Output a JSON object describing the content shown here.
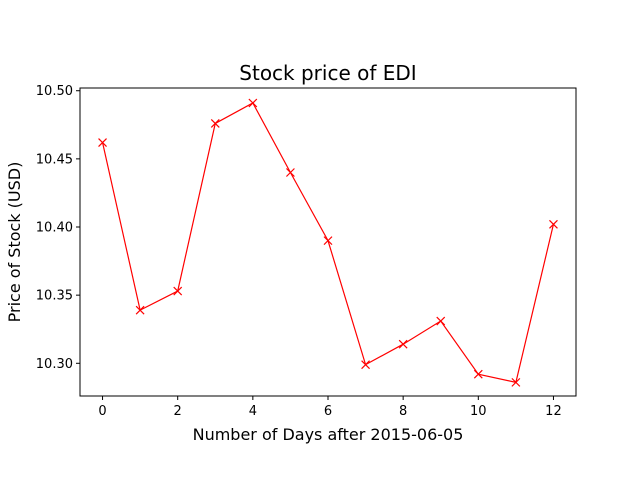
{
  "chart_data": {
    "type": "line",
    "title": "Stock price of EDI",
    "xlabel": "Number of Days after 2015-06-05",
    "ylabel": "Price of Stock (USD)",
    "xlim": [
      -0.6,
      12.6
    ],
    "ylim": [
      10.276,
      10.502
    ],
    "xticks": [
      0,
      2,
      4,
      6,
      8,
      10,
      12
    ],
    "xtick_labels": [
      "0",
      "2",
      "4",
      "6",
      "8",
      "10",
      "12"
    ],
    "yticks": [
      10.3,
      10.35,
      10.4,
      10.45,
      10.5
    ],
    "ytick_labels": [
      "10.30",
      "10.35",
      "10.40",
      "10.45",
      "10.50"
    ],
    "grid": false,
    "legend": "none",
    "series": [
      {
        "color": "#ff0000",
        "marker": "x",
        "x": [
          0,
          1,
          2,
          3,
          4,
          5,
          6,
          7,
          8,
          9,
          10,
          11,
          12
        ],
        "y": [
          10.462,
          10.339,
          10.353,
          10.476,
          10.491,
          10.44,
          10.39,
          10.299,
          10.314,
          10.331,
          10.292,
          10.286,
          10.402
        ]
      }
    ]
  }
}
